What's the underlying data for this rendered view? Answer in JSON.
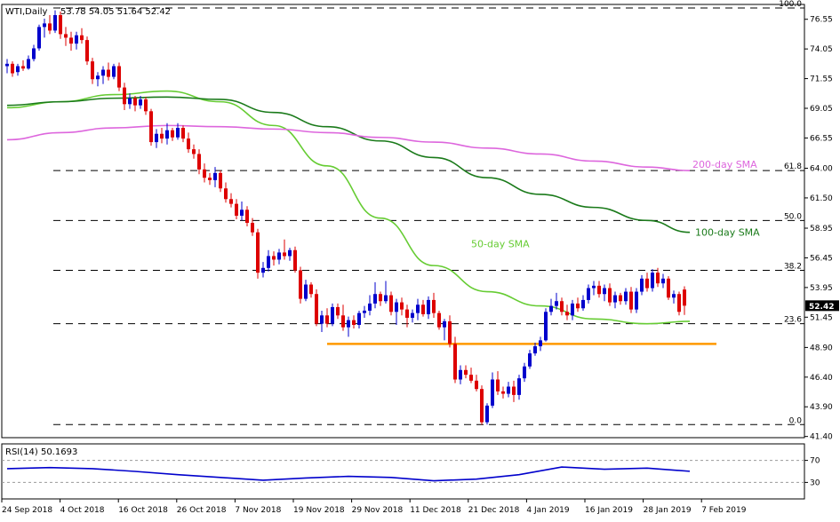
{
  "chart_data": [
    {
      "type": "candlestick",
      "title": "WTI,Daily",
      "ohlc_readout": "53.78 54.05 51.64 52.42",
      "last_price": "52.42",
      "ylim": [
        41.3,
        77.8
      ],
      "y_ticks": [
        "76.55",
        "74.05",
        "71.55",
        "69.05",
        "66.55",
        "64.00",
        "61.50",
        "58.95",
        "56.45",
        "53.95",
        "51.45",
        "48.90",
        "46.40",
        "43.90",
        "41.40"
      ],
      "x_ticks": [
        "24 Sep 2018",
        "4 Oct 2018",
        "16 Oct 2018",
        "26 Oct 2018",
        "7 Nov 2018",
        "19 Nov 2018",
        "29 Nov 2018",
        "11 Dec 2018",
        "21 Dec 2018",
        "4 Jan 2019",
        "16 Jan 2019",
        "28 Jan 2019",
        "7 Feb 2019"
      ],
      "candles": [
        {
          "o": 72.6,
          "h": 73.2,
          "l": 72.0,
          "c": 72.8
        },
        {
          "o": 72.8,
          "h": 73.0,
          "l": 71.7,
          "c": 72.0
        },
        {
          "o": 72.1,
          "h": 72.8,
          "l": 71.8,
          "c": 72.6
        },
        {
          "o": 72.6,
          "h": 73.1,
          "l": 72.2,
          "c": 72.4
        },
        {
          "o": 72.4,
          "h": 73.5,
          "l": 72.3,
          "c": 73.2
        },
        {
          "o": 73.2,
          "h": 74.4,
          "l": 73.0,
          "c": 74.1
        },
        {
          "o": 74.1,
          "h": 76.1,
          "l": 73.9,
          "c": 75.9
        },
        {
          "o": 75.9,
          "h": 76.6,
          "l": 75.0,
          "c": 76.2
        },
        {
          "o": 76.2,
          "h": 76.9,
          "l": 75.3,
          "c": 75.6
        },
        {
          "o": 75.6,
          "h": 77.3,
          "l": 75.4,
          "c": 76.9
        },
        {
          "o": 76.9,
          "h": 77.2,
          "l": 74.9,
          "c": 75.3
        },
        {
          "o": 75.3,
          "h": 75.9,
          "l": 74.3,
          "c": 75.0
        },
        {
          "o": 75.0,
          "h": 75.5,
          "l": 73.9,
          "c": 74.5
        },
        {
          "o": 74.5,
          "h": 75.5,
          "l": 74.0,
          "c": 75.2
        },
        {
          "o": 75.2,
          "h": 75.8,
          "l": 74.5,
          "c": 74.8
        },
        {
          "o": 74.8,
          "h": 75.1,
          "l": 72.7,
          "c": 73.0
        },
        {
          "o": 73.0,
          "h": 73.3,
          "l": 71.1,
          "c": 71.5
        },
        {
          "o": 71.5,
          "h": 72.1,
          "l": 70.9,
          "c": 71.8
        },
        {
          "o": 71.8,
          "h": 72.6,
          "l": 71.1,
          "c": 72.3
        },
        {
          "o": 72.3,
          "h": 72.9,
          "l": 71.4,
          "c": 71.7
        },
        {
          "o": 71.7,
          "h": 72.8,
          "l": 71.5,
          "c": 72.6
        },
        {
          "o": 72.6,
          "h": 72.9,
          "l": 70.5,
          "c": 70.8
        },
        {
          "o": 70.8,
          "h": 71.2,
          "l": 68.9,
          "c": 69.4
        },
        {
          "o": 69.4,
          "h": 70.3,
          "l": 69.0,
          "c": 69.9
        },
        {
          "o": 69.9,
          "h": 70.1,
          "l": 68.8,
          "c": 69.3
        },
        {
          "o": 69.3,
          "h": 70.1,
          "l": 69.0,
          "c": 69.8
        },
        {
          "o": 69.8,
          "h": 70.0,
          "l": 68.5,
          "c": 68.8
        },
        {
          "o": 68.8,
          "h": 69.0,
          "l": 65.9,
          "c": 66.2
        },
        {
          "o": 66.2,
          "h": 67.3,
          "l": 65.7,
          "c": 66.9
        },
        {
          "o": 66.9,
          "h": 67.4,
          "l": 66.1,
          "c": 66.5
        },
        {
          "o": 66.5,
          "h": 67.8,
          "l": 66.0,
          "c": 67.2
        },
        {
          "o": 67.2,
          "h": 67.4,
          "l": 66.3,
          "c": 66.6
        },
        {
          "o": 66.6,
          "h": 67.8,
          "l": 66.4,
          "c": 67.4
        },
        {
          "o": 67.4,
          "h": 67.6,
          "l": 66.2,
          "c": 66.5
        },
        {
          "o": 66.5,
          "h": 67.0,
          "l": 65.3,
          "c": 65.6
        },
        {
          "o": 65.6,
          "h": 66.0,
          "l": 64.8,
          "c": 65.2
        },
        {
          "o": 65.2,
          "h": 65.6,
          "l": 63.5,
          "c": 63.9
        },
        {
          "o": 63.9,
          "h": 64.4,
          "l": 62.8,
          "c": 63.2
        },
        {
          "o": 63.2,
          "h": 63.6,
          "l": 62.6,
          "c": 63.0
        },
        {
          "o": 63.0,
          "h": 64.1,
          "l": 62.4,
          "c": 63.6
        },
        {
          "o": 63.6,
          "h": 63.8,
          "l": 62.0,
          "c": 62.3
        },
        {
          "o": 62.3,
          "h": 62.8,
          "l": 61.1,
          "c": 61.4
        },
        {
          "o": 61.4,
          "h": 61.9,
          "l": 60.7,
          "c": 61.0
        },
        {
          "o": 61.0,
          "h": 61.4,
          "l": 59.7,
          "c": 60.0
        },
        {
          "o": 60.0,
          "h": 61.2,
          "l": 59.6,
          "c": 60.5
        },
        {
          "o": 60.5,
          "h": 60.8,
          "l": 59.1,
          "c": 59.4
        },
        {
          "o": 59.4,
          "h": 59.8,
          "l": 58.3,
          "c": 58.6
        },
        {
          "o": 58.6,
          "h": 58.9,
          "l": 54.7,
          "c": 55.2
        },
        {
          "o": 55.2,
          "h": 56.1,
          "l": 54.8,
          "c": 55.6
        },
        {
          "o": 55.6,
          "h": 57.1,
          "l": 55.3,
          "c": 56.6
        },
        {
          "o": 56.6,
          "h": 57.0,
          "l": 55.8,
          "c": 56.3
        },
        {
          "o": 56.3,
          "h": 57.2,
          "l": 55.9,
          "c": 56.9
        },
        {
          "o": 56.9,
          "h": 58.0,
          "l": 56.3,
          "c": 56.6
        },
        {
          "o": 56.6,
          "h": 57.3,
          "l": 56.2,
          "c": 57.1
        },
        {
          "o": 57.1,
          "h": 57.4,
          "l": 55.2,
          "c": 55.4
        },
        {
          "o": 55.4,
          "h": 55.7,
          "l": 52.6,
          "c": 53.0
        },
        {
          "o": 53.0,
          "h": 54.6,
          "l": 52.8,
          "c": 54.2
        },
        {
          "o": 54.2,
          "h": 54.4,
          "l": 53.1,
          "c": 53.4
        },
        {
          "o": 53.4,
          "h": 53.8,
          "l": 50.7,
          "c": 50.9
        },
        {
          "o": 50.9,
          "h": 52.0,
          "l": 50.2,
          "c": 51.6
        },
        {
          "o": 51.6,
          "h": 52.2,
          "l": 50.6,
          "c": 50.9
        },
        {
          "o": 50.9,
          "h": 52.6,
          "l": 50.7,
          "c": 52.3
        },
        {
          "o": 52.3,
          "h": 52.6,
          "l": 51.3,
          "c": 51.6
        },
        {
          "o": 51.6,
          "h": 52.5,
          "l": 50.3,
          "c": 50.6
        },
        {
          "o": 50.6,
          "h": 51.5,
          "l": 49.8,
          "c": 51.2
        },
        {
          "o": 51.2,
          "h": 51.6,
          "l": 50.5,
          "c": 50.8
        },
        {
          "o": 50.8,
          "h": 52.0,
          "l": 50.5,
          "c": 51.8
        },
        {
          "o": 51.8,
          "h": 52.4,
          "l": 51.4,
          "c": 52.0
        },
        {
          "o": 52.0,
          "h": 53.3,
          "l": 51.6,
          "c": 52.6
        },
        {
          "o": 52.6,
          "h": 54.4,
          "l": 52.2,
          "c": 53.4
        },
        {
          "o": 53.4,
          "h": 53.6,
          "l": 52.4,
          "c": 52.8
        },
        {
          "o": 52.8,
          "h": 54.5,
          "l": 52.6,
          "c": 53.3
        },
        {
          "o": 53.3,
          "h": 53.6,
          "l": 51.6,
          "c": 51.9
        },
        {
          "o": 51.9,
          "h": 53.0,
          "l": 50.8,
          "c": 52.7
        },
        {
          "o": 52.7,
          "h": 53.1,
          "l": 51.6,
          "c": 52.1
        },
        {
          "o": 52.1,
          "h": 52.5,
          "l": 50.6,
          "c": 51.4
        },
        {
          "o": 51.4,
          "h": 52.1,
          "l": 51.0,
          "c": 51.8
        },
        {
          "o": 51.8,
          "h": 53.0,
          "l": 51.2,
          "c": 52.5
        },
        {
          "o": 52.5,
          "h": 52.9,
          "l": 51.5,
          "c": 51.7
        },
        {
          "o": 51.7,
          "h": 53.2,
          "l": 51.3,
          "c": 52.9
        },
        {
          "o": 52.9,
          "h": 53.5,
          "l": 51.4,
          "c": 51.8
        },
        {
          "o": 51.8,
          "h": 52.0,
          "l": 50.4,
          "c": 50.6
        },
        {
          "o": 50.6,
          "h": 51.3,
          "l": 49.5,
          "c": 51.1
        },
        {
          "o": 51.1,
          "h": 51.6,
          "l": 48.9,
          "c": 49.2
        },
        {
          "o": 49.2,
          "h": 49.8,
          "l": 45.9,
          "c": 46.2
        },
        {
          "o": 46.2,
          "h": 47.4,
          "l": 45.8,
          "c": 47.0
        },
        {
          "o": 47.0,
          "h": 47.4,
          "l": 46.3,
          "c": 46.6
        },
        {
          "o": 46.6,
          "h": 47.2,
          "l": 45.9,
          "c": 46.1
        },
        {
          "o": 46.1,
          "h": 46.6,
          "l": 45.2,
          "c": 45.4
        },
        {
          "o": 45.4,
          "h": 45.7,
          "l": 42.4,
          "c": 42.6
        },
        {
          "o": 42.6,
          "h": 44.2,
          "l": 42.4,
          "c": 44.0
        },
        {
          "o": 44.0,
          "h": 46.8,
          "l": 43.8,
          "c": 46.2
        },
        {
          "o": 46.2,
          "h": 46.9,
          "l": 44.9,
          "c": 45.2
        },
        {
          "o": 45.2,
          "h": 45.6,
          "l": 44.6,
          "c": 45.0
        },
        {
          "o": 45.0,
          "h": 46.0,
          "l": 44.7,
          "c": 45.6
        },
        {
          "o": 45.6,
          "h": 46.1,
          "l": 44.3,
          "c": 44.9
        },
        {
          "o": 44.9,
          "h": 46.6,
          "l": 44.5,
          "c": 46.3
        },
        {
          "o": 46.3,
          "h": 47.6,
          "l": 46.0,
          "c": 47.3
        },
        {
          "o": 47.3,
          "h": 48.7,
          "l": 47.1,
          "c": 48.4
        },
        {
          "o": 48.4,
          "h": 49.3,
          "l": 48.2,
          "c": 49.0
        },
        {
          "o": 49.0,
          "h": 49.8,
          "l": 48.6,
          "c": 49.5
        },
        {
          "o": 49.5,
          "h": 52.2,
          "l": 49.4,
          "c": 51.9
        },
        {
          "o": 51.9,
          "h": 53.0,
          "l": 51.6,
          "c": 52.4
        },
        {
          "o": 52.4,
          "h": 53.5,
          "l": 52.1,
          "c": 52.8
        },
        {
          "o": 52.8,
          "h": 53.1,
          "l": 51.6,
          "c": 51.9
        },
        {
          "o": 51.9,
          "h": 52.5,
          "l": 51.2,
          "c": 51.6
        },
        {
          "o": 51.6,
          "h": 52.9,
          "l": 51.2,
          "c": 52.6
        },
        {
          "o": 52.6,
          "h": 53.1,
          "l": 51.9,
          "c": 52.2
        },
        {
          "o": 52.2,
          "h": 53.3,
          "l": 52.0,
          "c": 52.9
        },
        {
          "o": 52.9,
          "h": 54.2,
          "l": 52.6,
          "c": 53.9
        },
        {
          "o": 53.9,
          "h": 54.5,
          "l": 53.3,
          "c": 54.1
        },
        {
          "o": 54.1,
          "h": 54.5,
          "l": 53.1,
          "c": 53.4
        },
        {
          "o": 53.4,
          "h": 54.2,
          "l": 52.8,
          "c": 53.9
        },
        {
          "o": 53.9,
          "h": 54.3,
          "l": 52.4,
          "c": 52.7
        },
        {
          "o": 52.7,
          "h": 53.6,
          "l": 52.2,
          "c": 53.3
        },
        {
          "o": 53.3,
          "h": 53.5,
          "l": 52.5,
          "c": 52.8
        },
        {
          "o": 52.8,
          "h": 53.9,
          "l": 52.5,
          "c": 53.6
        },
        {
          "o": 53.6,
          "h": 54.0,
          "l": 51.8,
          "c": 52.1
        },
        {
          "o": 52.1,
          "h": 53.9,
          "l": 51.8,
          "c": 53.6
        },
        {
          "o": 53.6,
          "h": 55.0,
          "l": 53.3,
          "c": 54.7
        },
        {
          "o": 54.7,
          "h": 55.2,
          "l": 53.6,
          "c": 53.9
        },
        {
          "o": 53.9,
          "h": 55.5,
          "l": 53.6,
          "c": 55.2
        },
        {
          "o": 55.2,
          "h": 55.6,
          "l": 54.0,
          "c": 54.3
        },
        {
          "o": 54.3,
          "h": 55.1,
          "l": 53.9,
          "c": 54.7
        },
        {
          "o": 54.7,
          "h": 54.9,
          "l": 52.9,
          "c": 53.1
        },
        {
          "o": 53.1,
          "h": 53.7,
          "l": 52.6,
          "c": 53.4
        },
        {
          "o": 53.4,
          "h": 53.6,
          "l": 51.6,
          "c": 51.9
        },
        {
          "o": 53.78,
          "h": 54.05,
          "l": 51.64,
          "c": 52.42
        }
      ],
      "levels": [
        {
          "label": "100.0",
          "value": 77.5
        },
        {
          "label": "61.8",
          "value": 63.8
        },
        {
          "label": "50.0",
          "value": 59.6
        },
        {
          "label": "38.2",
          "value": 55.4
        },
        {
          "label": "23.6",
          "value": 50.9
        },
        {
          "label": "0.0",
          "value": 42.4
        }
      ],
      "support_line": {
        "value": 49.2,
        "color": "#ff9900"
      },
      "series": [
        {
          "name": "50-day SMA",
          "color": "#66cc33",
          "x": [
            0,
            10,
            20,
            30,
            40,
            50,
            60,
            70,
            80,
            90,
            100,
            110,
            120,
            128
          ],
          "y": [
            69.1,
            69.6,
            70.2,
            70.5,
            69.6,
            67.6,
            64.2,
            59.8,
            55.8,
            53.6,
            52.4,
            51.3,
            50.9,
            51.1
          ]
        },
        {
          "name": "100-day SMA",
          "color": "#1a7a1a",
          "x": [
            0,
            10,
            20,
            30,
            40,
            50,
            60,
            70,
            80,
            90,
            100,
            110,
            120,
            128
          ],
          "y": [
            69.3,
            69.6,
            69.9,
            70.0,
            69.8,
            68.7,
            67.5,
            66.3,
            64.9,
            63.2,
            61.8,
            60.7,
            59.6,
            58.6
          ]
        },
        {
          "name": "200-day SMA",
          "color": "#dd66dd",
          "x": [
            0,
            10,
            20,
            30,
            40,
            50,
            60,
            70,
            80,
            90,
            100,
            110,
            120,
            128
          ],
          "y": [
            66.4,
            67.0,
            67.4,
            67.6,
            67.5,
            67.3,
            67.0,
            66.6,
            66.2,
            65.7,
            65.2,
            64.6,
            64.1,
            63.8
          ]
        }
      ]
    },
    {
      "type": "line",
      "title": "RSI(14) 50.1693",
      "ylim": [
        0,
        100
      ],
      "y_ticks": [
        "70",
        "30"
      ],
      "series": [
        {
          "name": "RSI(14)",
          "color": "#0000cc",
          "x": [
            0,
            8,
            16,
            24,
            32,
            40,
            48,
            56,
            64,
            72,
            80,
            88,
            96,
            104,
            112,
            120,
            128
          ],
          "y": [
            55,
            57,
            55,
            50,
            44,
            39,
            34,
            38,
            41,
            39,
            33,
            36,
            44,
            58,
            54,
            56,
            50.2
          ]
        }
      ]
    }
  ]
}
